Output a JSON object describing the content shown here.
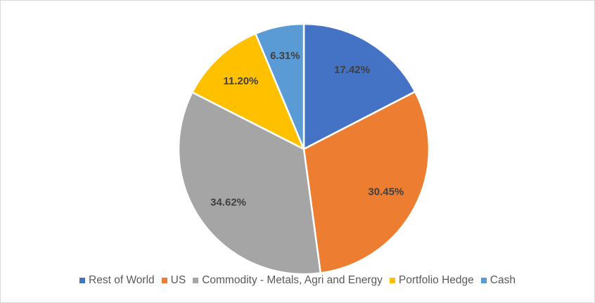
{
  "chart_data": {
    "type": "pie",
    "title": "",
    "categories": [
      "Rest of World",
      "US",
      "Commodity - Metals, Agri and Energy",
      "Portfolio Hedge",
      "Cash"
    ],
    "values": [
      17.42,
      30.45,
      34.62,
      11.2,
      6.31
    ],
    "data_labels": [
      "17.42%",
      "30.45%",
      "34.62%",
      "11.20%",
      "6.31%"
    ],
    "colors": [
      "#4472C4",
      "#ED7D31",
      "#A5A5A5",
      "#FFC000",
      "#5B9BD5"
    ],
    "start_angle_deg": 0,
    "direction": "clockwise",
    "slice_border_color": "#FFFFFF",
    "legend_placement": "bottom"
  }
}
